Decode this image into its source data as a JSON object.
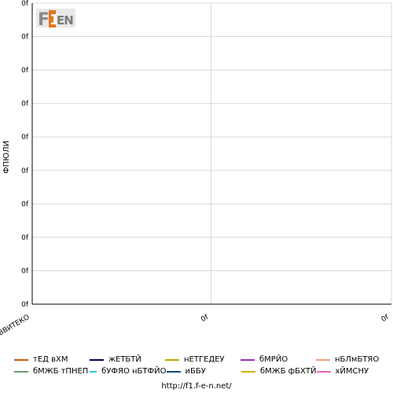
{
  "chart_data": {
    "type": "line",
    "ylabel": "ФПЮЛИ",
    "y_tick_labels": [
      "0f",
      "0f",
      "0f",
      "0f",
      "0f",
      "0f",
      "0f",
      "0f",
      "0f",
      "0f"
    ],
    "x_tick_labels": [
      "ВВИТЕКО",
      "0f",
      "0f"
    ],
    "series": [
      {
        "name": "тЕД вХМ",
        "color": "#c05a14",
        "values": []
      },
      {
        "name": "жЕТБТЙ",
        "color": "#000060",
        "values": []
      },
      {
        "name": "нЕТГЕДЕУ",
        "color": "#c8a000",
        "values": []
      },
      {
        "name": "бМРЙО",
        "color": "#9a30c0",
        "values": []
      },
      {
        "name": "нБЛмБТЯО",
        "color": "#f0a080",
        "values": []
      },
      {
        "name": "бМЖБ тПНЕП",
        "color": "#6a9a78",
        "values": []
      },
      {
        "name": "бУФЯО нБТФЙО",
        "color": "#30c0e0",
        "values": []
      },
      {
        "name": "иББУ",
        "color": "#104880",
        "values": []
      },
      {
        "name": "бМЖБ фБХТЙ",
        "color": "#d4b000",
        "values": []
      },
      {
        "name": "хЙМСНУ",
        "color": "#f060c0",
        "values": []
      }
    ]
  },
  "logo": {
    "text": "F1EN"
  },
  "footer": {
    "url": "http://f1.f-e-n.net/"
  }
}
